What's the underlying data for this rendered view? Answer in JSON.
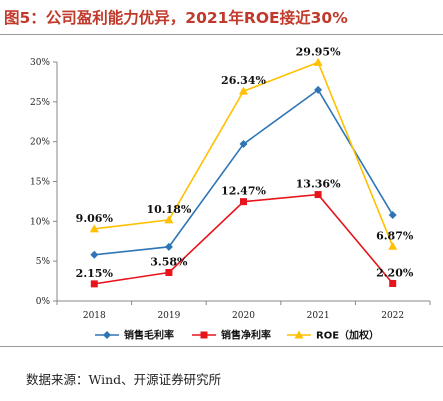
{
  "header": {
    "title": "图5：公司盈利能力优异，2021年ROE接近30%"
  },
  "footer": {
    "source": "数据来源：Wind、开源证券研究所"
  },
  "chart_data": {
    "type": "line",
    "categories": [
      "2018",
      "2019",
      "2020",
      "2021",
      "2022"
    ],
    "ylim": [
      0,
      30
    ],
    "yticks": [
      0,
      5,
      10,
      15,
      20,
      25,
      30
    ],
    "ytick_labels": [
      "0%",
      "5%",
      "10%",
      "15%",
      "20%",
      "25%",
      "30%"
    ],
    "legend_position": "bottom",
    "grid": false,
    "series": [
      {
        "name": "销售毛利率",
        "values": [
          5.8,
          6.8,
          19.7,
          26.5,
          10.8
        ],
        "color": "#2e75b6",
        "marker": "diamond",
        "labels": [
          null,
          null,
          null,
          null,
          null
        ]
      },
      {
        "name": "销售净利率",
        "values": [
          2.15,
          3.58,
          12.47,
          13.36,
          2.2
        ],
        "color": "#e8141b",
        "marker": "square",
        "labels": [
          "2.15%",
          "3.58%",
          "12.47%",
          "13.36%",
          "2.20%"
        ]
      },
      {
        "name": "ROE（加权）",
        "values": [
          9.06,
          10.18,
          26.34,
          29.95,
          6.87
        ],
        "color": "#ffc000",
        "marker": "triangle",
        "labels": [
          "9.06%",
          "10.18%",
          "26.34%",
          "29.95%",
          "6.87%"
        ]
      }
    ]
  }
}
